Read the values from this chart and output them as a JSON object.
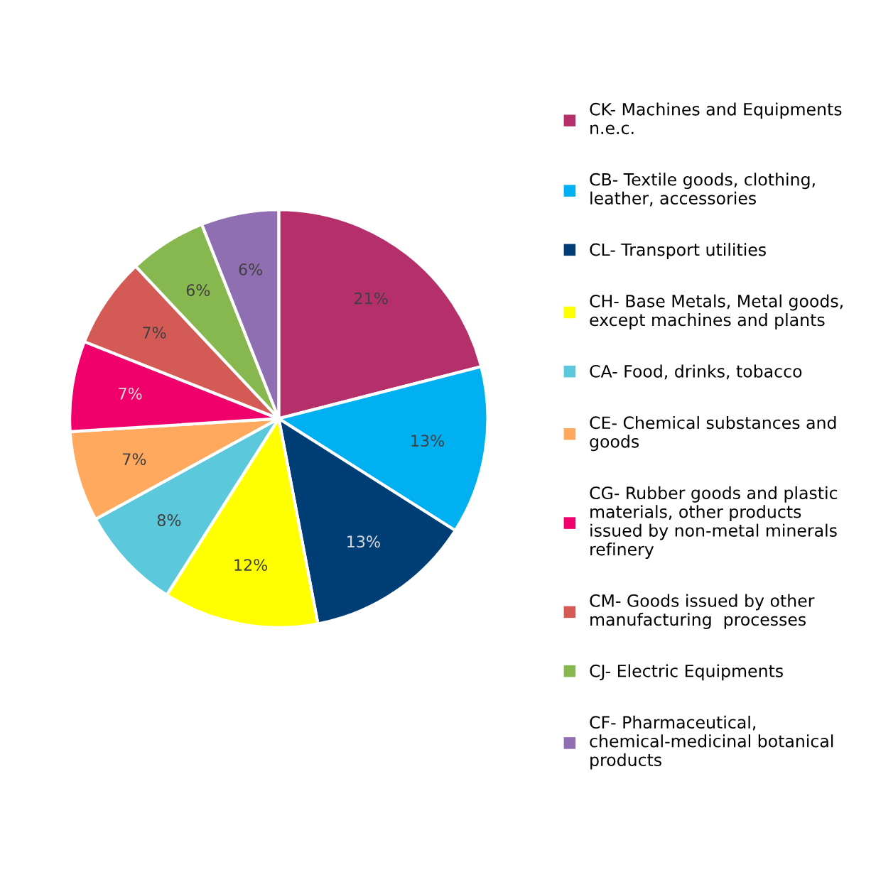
{
  "chart_data": {
    "type": "pie",
    "legend": "right",
    "categories": [
      "CK- Machines and Equipments n.e.c.",
      "CB- Textile goods, clothing, leather, accessories",
      "CL- Transport utilities",
      "CH- Base Metals, Metal goods, except machines and plants",
      "CA- Food, drinks, tobacco",
      "CE- Chemical substances and goods",
      "CG- Rubber goods and plastic materials, other products issued by non-metal minerals refinery",
      "CM- Goods issued by other manufacturing  processes",
      "CJ- Electric Equipments",
      "CF- Pharmaceutical, chemical-medicinal botanical products"
    ],
    "values": [
      21,
      13,
      13,
      12,
      8,
      7,
      7,
      7,
      6,
      6
    ],
    "value_labels": [
      "21%",
      "13%",
      "13%",
      "12%",
      "8%",
      "7%",
      "7%",
      "7%",
      "6%",
      "6%"
    ],
    "colors": [
      "#b5306b",
      "#00b0f0",
      "#003e75",
      "#ffff00",
      "#5bc8dc",
      "#ffa95e",
      "#f0006a",
      "#d45a55",
      "#87b84f",
      "#8f6fb2"
    ]
  }
}
